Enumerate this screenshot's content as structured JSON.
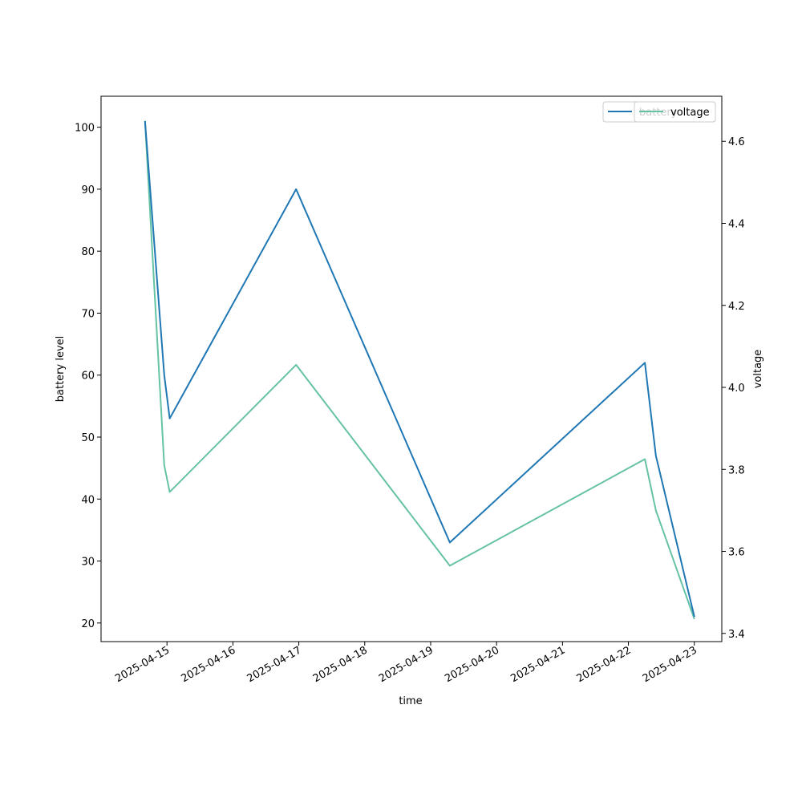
{
  "chart_data": {
    "type": "line",
    "xlabel": "time",
    "ylabel_left": "battery level",
    "ylabel_right": "voltage",
    "x_ticks": [
      "2025-04-15",
      "2025-04-16",
      "2025-04-17",
      "2025-04-18",
      "2025-04-19",
      "2025-04-20",
      "2025-04-21",
      "2025-04-22",
      "2025-04-23"
    ],
    "y_left_ticks": [
      20,
      30,
      40,
      50,
      60,
      70,
      80,
      90,
      100
    ],
    "y_right_ticks": [
      3.4,
      3.6,
      3.8,
      4.0,
      4.2,
      4.4,
      4.6
    ],
    "ylim_left": [
      17,
      105
    ],
    "ylim_right": [
      3.38,
      4.71
    ],
    "xlim": [
      "2025-04-14T00:00",
      "2025-04-23T10:00"
    ],
    "legend": {
      "placement": "top-right",
      "entries": [
        "battery",
        "voltage"
      ]
    },
    "series": [
      {
        "name": "battery",
        "axis": "left",
        "color": "#1f77b4",
        "points": [
          {
            "x": "2025-04-14T16:00",
            "y": 101
          },
          {
            "x": "2025-04-14T23:00",
            "y": 60
          },
          {
            "x": "2025-04-15T01:00",
            "y": 53
          },
          {
            "x": "2025-04-16T23:00",
            "y": 90
          },
          {
            "x": "2025-04-19T07:00",
            "y": 33
          },
          {
            "x": "2025-04-22T06:00",
            "y": 62
          },
          {
            "x": "2025-04-22T10:00",
            "y": 47
          },
          {
            "x": "2025-04-23T00:00",
            "y": 21
          }
        ]
      },
      {
        "name": "voltage",
        "axis": "right",
        "color": "#66c2a5",
        "points": [
          {
            "x": "2025-04-14T16:00",
            "y": 4.65
          },
          {
            "x": "2025-04-14T23:00",
            "y": 3.81
          },
          {
            "x": "2025-04-15T01:00",
            "y": 3.745
          },
          {
            "x": "2025-04-16T23:00",
            "y": 4.055
          },
          {
            "x": "2025-04-19T07:00",
            "y": 3.565
          },
          {
            "x": "2025-04-22T06:00",
            "y": 3.825
          },
          {
            "x": "2025-04-22T10:00",
            "y": 3.7
          },
          {
            "x": "2025-04-23T00:00",
            "y": 3.435
          }
        ]
      }
    ]
  }
}
